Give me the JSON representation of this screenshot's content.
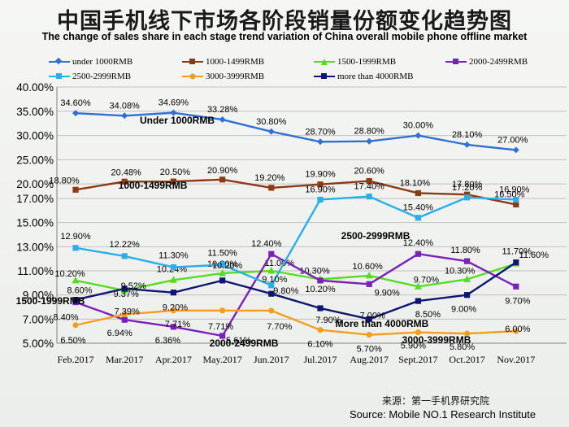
{
  "title_cn": "中国手机线下市场各阶段销量份额变化趋势图",
  "title_en": "The change of sales share in each stage trend variation of China overall mobile phone offline market",
  "source_cn": "来源：第一手机界研究院",
  "source_en": "Source: Mobile NO.1 Research Institute",
  "chart_data": {
    "type": "line",
    "title": "中国手机线下市场各阶段销量份额变化趋势图",
    "subtitle": "The change of sales share in each stage trend variation of China overall mobile phone offline market",
    "categories": [
      "Feb.2017",
      "Mar.2017",
      "Apr.2017",
      "May.2017",
      "Jun.2017",
      "Jul.2017",
      "Aug.2017",
      "Sept.2017",
      "Oct.2017",
      "Nov.2017"
    ],
    "y_ticks": [
      "40.00%",
      "35.00%",
      "30.00%",
      "25.00%",
      "20.00%",
      "17.00%",
      "15.00%",
      "13.00%",
      "11.00%",
      "9.00%",
      "7.00%",
      "5.00%"
    ],
    "y_axis_note": "Broken (non-linear) y-axis: 5-17% at 2%/step, 17-40% at 5%/step",
    "ylim": [
      5,
      40
    ],
    "grid": true,
    "legend_position": "top",
    "series": [
      {
        "name": "under 1000RMB",
        "color": "#2f6fd6",
        "marker": "diamond",
        "values": [
          34.6,
          34.08,
          34.69,
          33.28,
          30.8,
          28.7,
          28.8,
          30.0,
          28.1,
          27.0
        ],
        "labels": [
          "34.60%",
          "34.08%",
          "34.69%",
          "33.28%",
          "30.80%",
          "28.70%",
          "28.80%",
          "30.00%",
          "28.10%",
          "27.00%"
        ]
      },
      {
        "name": "1000-1499RMB",
        "color": "#8b3a12",
        "marker": "square",
        "values": [
          18.8,
          20.48,
          20.5,
          20.9,
          19.2,
          19.9,
          20.6,
          18.1,
          17.8,
          16.5
        ],
        "labels": [
          "18.80%",
          "20.48%",
          "20.50%",
          "20.90%",
          "19.20%",
          "19.90%",
          "20.60%",
          "18.10%",
          "17.80%",
          "16.50%"
        ]
      },
      {
        "name": "1500-1999RMB",
        "color": "#55dd22",
        "marker": "triangle",
        "values": [
          10.2,
          9.37,
          10.24,
          10.8,
          11.0,
          10.3,
          10.6,
          9.7,
          10.3,
          11.6
        ],
        "labels": [
          "10.20%",
          "9.37%",
          "10.24%",
          "10.80%",
          "11.00%",
          "10.30%",
          "10.60%",
          "9.70%",
          "10.30%",
          "11.60%"
        ]
      },
      {
        "name": "2000-2499RMB",
        "color": "#7a22b8",
        "marker": "square",
        "values": [
          8.4,
          6.94,
          6.36,
          5.61,
          12.4,
          10.2,
          9.9,
          12.4,
          11.8,
          9.7
        ],
        "labels": [
          "8.40%",
          "6.94%",
          "6.36%",
          "5.61%",
          "12.40%",
          "10.20%",
          "9.90%",
          "12.40%",
          "11.80%",
          "9.70%"
        ]
      },
      {
        "name": "2500-2999RMB",
        "color": "#29aee8",
        "marker": "square",
        "values": [
          12.9,
          12.22,
          11.3,
          11.5,
          9.8,
          16.9,
          17.4,
          15.4,
          17.2,
          16.9
        ],
        "labels": [
          "12.90%",
          "12.22%",
          "11.30%",
          "11.50%",
          "9.80%",
          "16.90%",
          "17.40%",
          "15.40%",
          "17.20%",
          "16.90%"
        ]
      },
      {
        "name": "3000-3999RMB",
        "color": "#f0a020",
        "marker": "circle",
        "values": [
          6.5,
          7.39,
          7.71,
          7.71,
          7.7,
          6.1,
          5.7,
          5.9,
          5.8,
          6.0
        ],
        "labels": [
          "6.50%",
          "7.39%",
          "7.71%",
          "7.71%",
          "7.70%",
          "6.10%",
          "5.70%",
          "5.90%",
          "5.80%",
          "6.00%"
        ]
      },
      {
        "name": "more than 4000RMB",
        "color": "#0d1670",
        "marker": "square",
        "values": [
          8.6,
          9.52,
          9.2,
          10.2,
          9.1,
          7.9,
          7.0,
          8.5,
          9.0,
          11.7
        ],
        "labels": [
          "8.60%",
          "9.52%",
          "9.20%",
          "10.20%",
          "9.10%",
          "7.90%",
          "7.00%",
          "8.50%",
          "9.00%",
          "11.70%"
        ]
      }
    ],
    "annotations": [
      "Under 1000RMB",
      "1000-1499RMB",
      "1500-1999RMB",
      "2000-2499RMB",
      "2500-2999RMB",
      "3000-3999RMB",
      "More than 4000RMB"
    ]
  }
}
